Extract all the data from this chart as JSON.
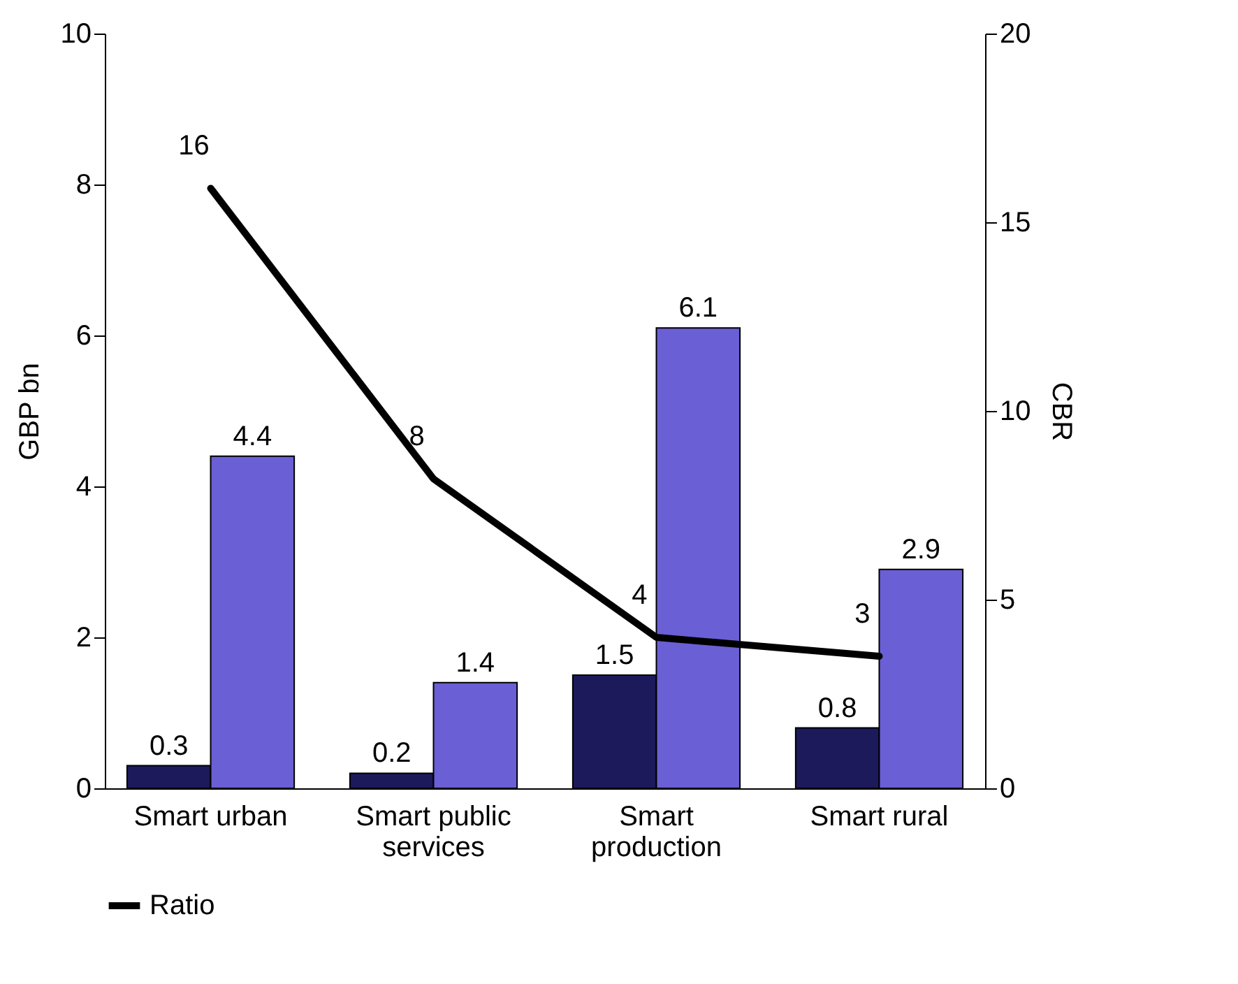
{
  "chart_data": {
    "type": "bar",
    "ylabel": "GBP bn",
    "y2label": "CBR",
    "categories": [
      "Smart urban",
      "Smart public services",
      "Smart production",
      "Smart rural"
    ],
    "series": [
      {
        "color": "#1c1a5a",
        "values": [
          0.3,
          0.2,
          1.5,
          0.8
        ]
      },
      {
        "color": "#6a5fd4",
        "values": [
          4.4,
          1.4,
          6.1,
          2.9
        ]
      },
      {
        "name": "Ratio",
        "type": "line",
        "axis": "y2",
        "color": "#000000",
        "values": [
          15.9,
          8.2,
          4,
          3.5
        ],
        "value_labels": [
          "16",
          "8",
          "4",
          "3"
        ]
      }
    ],
    "ylim": [
      0,
      10
    ],
    "yticks": [
      0,
      2,
      4,
      6,
      8,
      10
    ],
    "y2lim": [
      0,
      20
    ],
    "y2ticks": [
      0,
      5,
      10,
      15,
      20
    ],
    "data_labels": true,
    "grid": false,
    "legend": "bottom",
    "marker": "none",
    "line_style": "solid"
  }
}
